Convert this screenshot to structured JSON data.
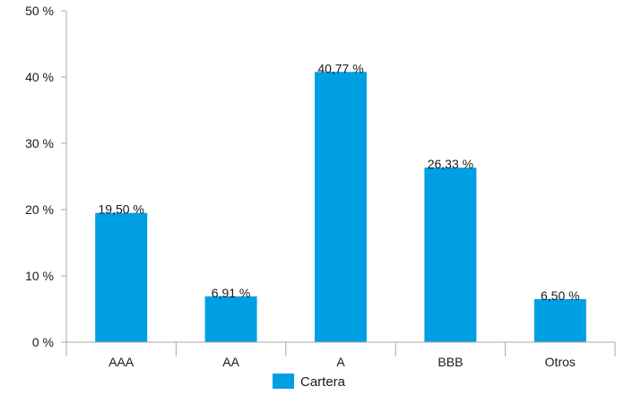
{
  "chart_data": {
    "type": "bar",
    "categories": [
      "AAA",
      "AA",
      "A",
      "BBB",
      "Otros"
    ],
    "series": [
      {
        "name": "Cartera",
        "values": [
          19.5,
          6.91,
          40.77,
          26.33,
          6.5
        ],
        "labels": [
          "19,50 %",
          "6,91 %",
          "40,77 %",
          "26,33 %",
          "6,50 %"
        ],
        "color": "#009fe3"
      }
    ],
    "yticks": [
      0,
      10,
      20,
      30,
      40,
      50
    ],
    "ytick_labels": [
      "0 %",
      "10 %",
      "20 %",
      "30 %",
      "40 %",
      "50 %"
    ],
    "ylim": [
      0,
      50
    ],
    "grid": false,
    "legend": "bottom-center"
  }
}
